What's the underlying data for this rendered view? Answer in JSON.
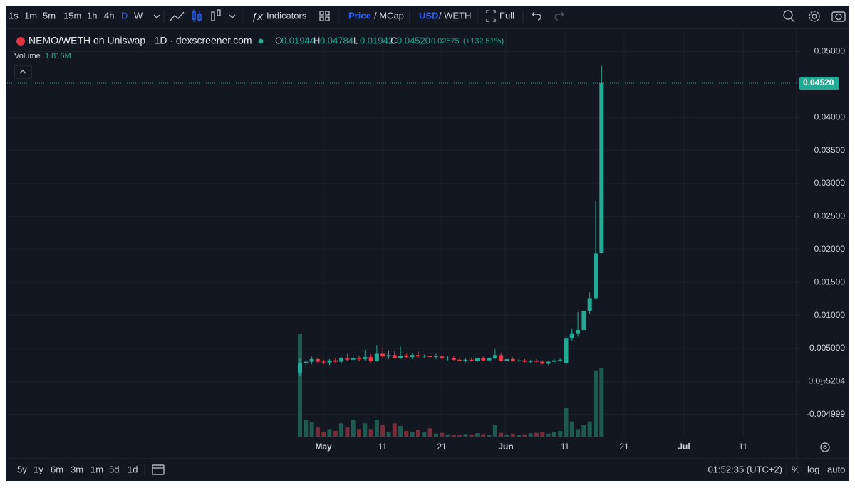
{
  "toolbar": {
    "intervals": [
      "1s",
      "1m",
      "5m",
      "15m",
      "1h",
      "4h",
      "D",
      "W"
    ],
    "indicators": "Indicators",
    "price": "Price",
    "mcap": "/ MCap",
    "usd": "USD",
    "weth": "/ WETH",
    "full": "Full"
  },
  "chart_data": {
    "type": "candlestick",
    "title": "NEMO/WETH on Uniswap · 1D · dexscreener.com",
    "ohlc_legend": [
      {
        "key": "O",
        "text": "0.01944"
      },
      {
        "key": "H",
        "text": "0.04784"
      },
      {
        "key": "L",
        "text": "0.01942"
      },
      {
        "key": "C",
        "text": "0.04520"
      }
    ],
    "change": "0.02575",
    "change_pct": "(+132.51%)",
    "volume_label": "Volume",
    "volume_value": "1.816M",
    "up_color": "#22ab94",
    "down_color": "#f23645",
    "volume_up_color": "#1d5a52",
    "volume_down_color": "#7a2d37",
    "grid": true,
    "ylim": [
      -0.00836,
      0.05328
    ],
    "yticks": [
      {
        "value": 0.05,
        "label": "0.05000"
      },
      {
        "value": 0.04,
        "label": "0.04000"
      },
      {
        "value": 0.035,
        "label": "0.03500"
      },
      {
        "value": 0.03,
        "label": "0.03000"
      },
      {
        "value": 0.025,
        "label": "0.02500"
      },
      {
        "value": 0.02,
        "label": "0.02000"
      },
      {
        "value": 0.015,
        "label": "0.01500"
      },
      {
        "value": 0.01,
        "label": "0.01000"
      },
      {
        "value": 0.005,
        "label": "0.005000"
      },
      {
        "value": 5.204e-19,
        "label": "0.0₁₇5204"
      },
      {
        "value": -0.004999,
        "label": "-0.004999"
      }
    ],
    "last_price": {
      "value": 0.0452,
      "label": "0.04520"
    },
    "xtick_labels": [
      "May",
      "11",
      "21",
      "Jun",
      "11",
      "21",
      "Jul",
      "11"
    ],
    "volume_ylim": [
      0,
      3000000
    ],
    "open": [
      0.0012,
      0.0028,
      0.003,
      0.0034,
      0.003,
      0.0029,
      0.0032,
      0.003,
      0.0035,
      0.0033,
      0.0036,
      0.0034,
      0.0037,
      0.0031,
      0.0042,
      0.0038,
      0.004,
      0.0036,
      0.0039,
      0.0037,
      0.004,
      0.0038,
      0.0039,
      0.0037,
      0.0038,
      0.0035,
      0.0036,
      0.0033,
      0.0031,
      0.0033,
      0.0031,
      0.0035,
      0.0032,
      0.0036,
      0.004,
      0.0031,
      0.0034,
      0.0031,
      0.0032,
      0.003,
      0.0031,
      0.003,
      0.0027,
      0.003,
      0.0032,
      0.0028,
      0.0066,
      0.0073,
      0.0078,
      0.0107,
      0.0126,
      0.01944
    ],
    "high": [
      0.0036,
      0.0032,
      0.0038,
      0.0036,
      0.0033,
      0.0034,
      0.0035,
      0.0037,
      0.0042,
      0.004,
      0.0039,
      0.0048,
      0.0041,
      0.0055,
      0.0052,
      0.0047,
      0.0046,
      0.0053,
      0.0042,
      0.0043,
      0.0045,
      0.0041,
      0.0043,
      0.0042,
      0.004,
      0.0038,
      0.0039,
      0.0036,
      0.0035,
      0.0036,
      0.0036,
      0.0038,
      0.0037,
      0.0049,
      0.0044,
      0.0036,
      0.0037,
      0.0034,
      0.0034,
      0.0033,
      0.0034,
      0.0032,
      0.0031,
      0.0034,
      0.0035,
      0.0068,
      0.008,
      0.0105,
      0.011,
      0.0135,
      0.0274,
      0.04784
    ],
    "low": [
      0.0008,
      0.0022,
      0.0026,
      0.0027,
      0.0026,
      0.0025,
      0.0028,
      0.0028,
      0.0031,
      0.003,
      0.0031,
      0.0032,
      0.0029,
      0.003,
      0.0036,
      0.0034,
      0.0035,
      0.0034,
      0.0035,
      0.0034,
      0.0036,
      0.0035,
      0.0036,
      0.0034,
      0.0034,
      0.0032,
      0.0032,
      0.003,
      0.0029,
      0.003,
      0.0029,
      0.0031,
      0.003,
      0.0034,
      0.003,
      0.0029,
      0.003,
      0.0029,
      0.0029,
      0.0028,
      0.0029,
      0.0026,
      0.0025,
      0.0029,
      0.003,
      0.0026,
      0.0062,
      0.0068,
      0.0074,
      0.0102,
      0.0124,
      0.01942
    ],
    "close": [
      0.0028,
      0.003,
      0.0034,
      0.003,
      0.0029,
      0.0032,
      0.003,
      0.0035,
      0.0033,
      0.0036,
      0.0034,
      0.0037,
      0.0031,
      0.0042,
      0.0038,
      0.004,
      0.0036,
      0.0039,
      0.0037,
      0.004,
      0.0038,
      0.0039,
      0.0037,
      0.0038,
      0.0035,
      0.0036,
      0.0033,
      0.0031,
      0.0033,
      0.0031,
      0.0035,
      0.0032,
      0.0036,
      0.004,
      0.0031,
      0.0034,
      0.0031,
      0.0032,
      0.003,
      0.0031,
      0.003,
      0.0027,
      0.003,
      0.0032,
      0.0033,
      0.0066,
      0.0073,
      0.0078,
      0.0107,
      0.0126,
      0.0194,
      0.0452
    ],
    "volume": [
      2700000,
      450000,
      380000,
      250000,
      120000,
      200000,
      150000,
      350000,
      250000,
      450000,
      200000,
      350000,
      200000,
      450000,
      300000,
      120000,
      350000,
      280000,
      150000,
      120000,
      180000,
      120000,
      220000,
      80000,
      100000,
      60000,
      50000,
      50000,
      70000,
      60000,
      90000,
      70000,
      50000,
      300000,
      100000,
      60000,
      80000,
      50000,
      60000,
      90000,
      100000,
      120000,
      80000,
      120000,
      150000,
      750000,
      400000,
      200000,
      300000,
      400000,
      1750000,
      1816000
    ]
  },
  "bottom_bar": {
    "ranges": [
      "5y",
      "1y",
      "6m",
      "3m",
      "1m",
      "5d",
      "1d"
    ],
    "time": "01:52:35 (UTC+2)",
    "percent": "%",
    "log": "log",
    "auto": "auto"
  }
}
